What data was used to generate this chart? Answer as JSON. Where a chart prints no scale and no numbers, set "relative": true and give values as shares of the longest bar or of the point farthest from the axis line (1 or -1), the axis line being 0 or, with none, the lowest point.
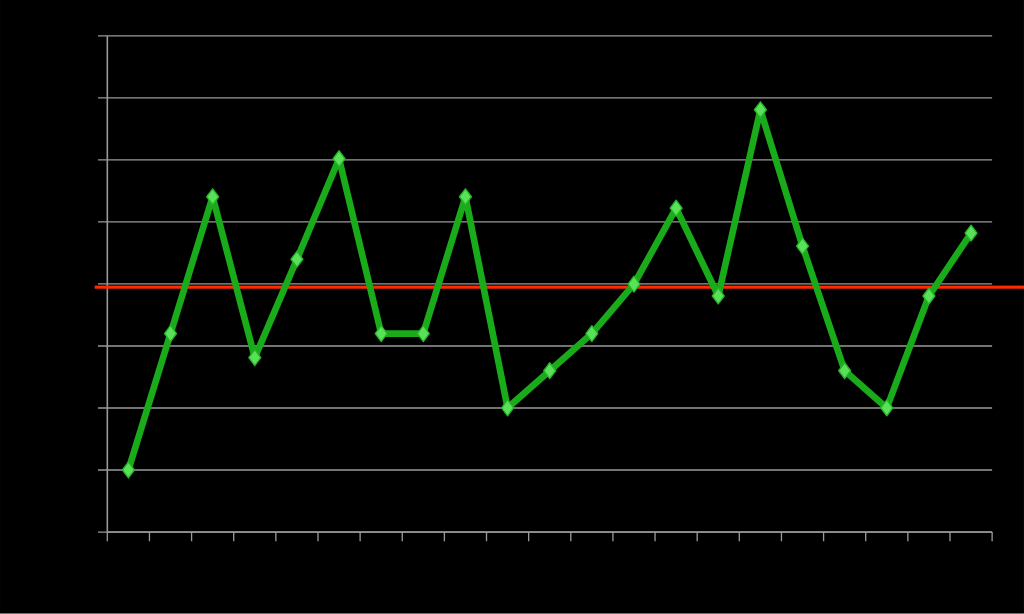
{
  "chart_data": {
    "type": "line",
    "relative": true,
    "categories": [
      null,
      null,
      null,
      null,
      null,
      null,
      null,
      null,
      null,
      null,
      null,
      null,
      null,
      null,
      null,
      null,
      null,
      null,
      null,
      null,
      null
    ],
    "series": [
      {
        "color": "#1aab1a",
        "values": [
          0.147,
          0.47,
          0.794,
          0.413,
          0.646,
          0.884,
          0.47,
          0.47,
          0.794,
          0.294,
          0.382,
          0.47,
          0.587,
          0.767,
          0.559,
          1.0,
          0.677,
          0.382,
          0.294,
          0.559,
          0.708
        ]
      }
    ],
    "marker": "diamond",
    "line_style": "solid",
    "grid": "y",
    "ref_lines": [
      {
        "axis": "y",
        "value": 0.58,
        "color": "#ff2a00"
      }
    ]
  }
}
